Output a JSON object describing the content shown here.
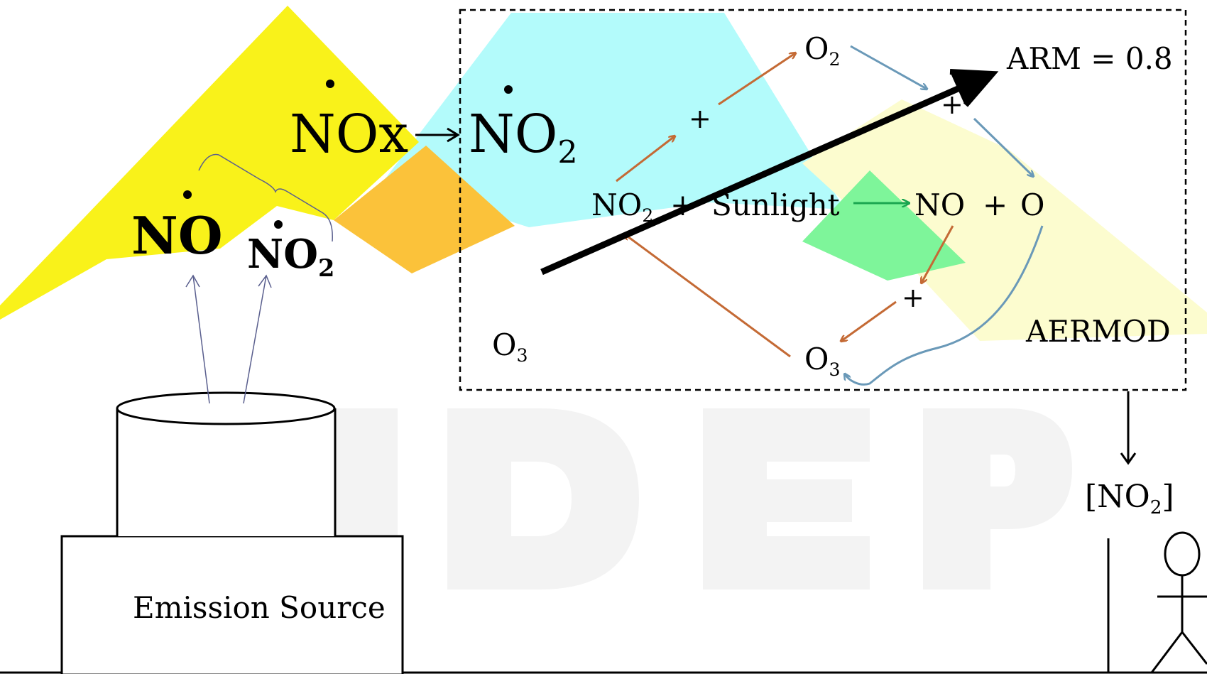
{
  "watermark": {
    "text": "NDEP"
  },
  "emission": {
    "source_label": "Emission Source",
    "species_no": "NO",
    "species_no2_main": "NO",
    "species_no2_sub": "2"
  },
  "nox": {
    "label": "NOx",
    "arrow": "→",
    "result_main": "NO",
    "result_sub": "2"
  },
  "aermod": {
    "label": "AERMOD",
    "arm": "ARM = 0.8",
    "o3_background_main": "O",
    "o3_background_sub": "3",
    "cycle": {
      "o2_main": "O",
      "o2_sub": "2",
      "plus_left": "+",
      "plus_right": "+",
      "plus_lower": "+",
      "no2_main": "NO",
      "no2_sub": "2",
      "plus_sunlight": "+",
      "sunlight": "Sunlight",
      "no": "NO",
      "plus_no_o": "+",
      "o": "O",
      "o3_main": "O",
      "o3_sub": "3"
    }
  },
  "receptor": {
    "concentration_open": "[NO",
    "concentration_sub": "2",
    "concentration_close": "]"
  },
  "colors": {
    "yellow": "#f9f21a",
    "cyan": "#b3fbfb",
    "orange_overlap": "#fbc23a",
    "green": "#7ef59a",
    "pale_yellow": "#fcfccf",
    "orange_arrow": "#c46a35",
    "blue_arrow": "#6a99b8",
    "green_arrow": "#1aa650",
    "bracket": "#5a5f8e"
  }
}
